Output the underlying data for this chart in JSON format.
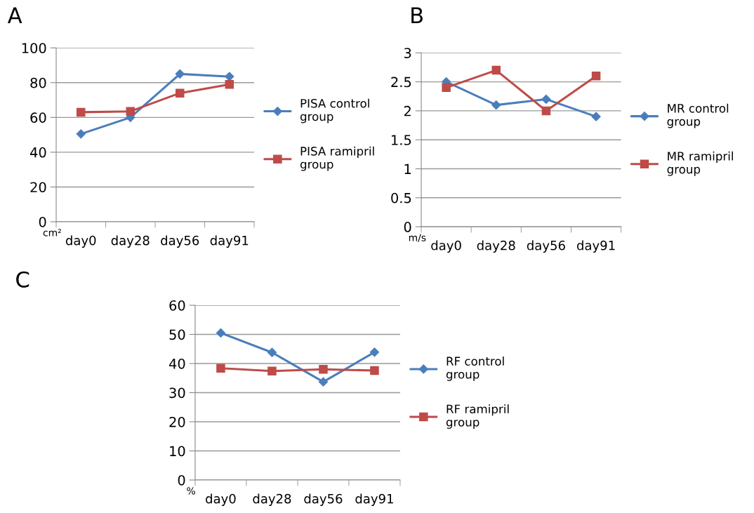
{
  "chart_data": [
    {
      "type": "line",
      "annotations": [
        "A"
      ],
      "ylabel": "cm²",
      "categories": [
        "day0",
        "day28",
        "day56",
        "day91"
      ],
      "ylim": [
        0,
        100
      ],
      "yticks": [
        0,
        20,
        40,
        60,
        80,
        100
      ],
      "grid": "y",
      "legend": "right",
      "series": [
        {
          "name": "PISA control group",
          "color": "#4a7ebb",
          "marker": "diamond",
          "values": [
            50.5,
            60,
            85,
            83.5
          ]
        },
        {
          "name": "PISA ramipril group",
          "color": "#be4b48",
          "marker": "square",
          "values": [
            63,
            63.5,
            74,
            79
          ]
        }
      ]
    },
    {
      "type": "line",
      "annotations": [
        "B"
      ],
      "ylabel": "m/s",
      "categories": [
        "day0",
        "day28",
        "day56",
        "day91"
      ],
      "ylim": [
        0,
        3
      ],
      "yticks": [
        0,
        0.5,
        1,
        1.5,
        2,
        2.5,
        3
      ],
      "grid": "y",
      "legend": "right",
      "series": [
        {
          "name": "MR control group",
          "color": "#4a7ebb",
          "marker": "diamond",
          "values": [
            2.5,
            2.1,
            2.2,
            1.9
          ]
        },
        {
          "name": "MR ramipril group",
          "color": "#be4b48",
          "marker": "square",
          "values": [
            2.4,
            2.7,
            2.0,
            2.6
          ]
        }
      ]
    },
    {
      "type": "line",
      "annotations": [
        "C"
      ],
      "ylabel": "%",
      "categories": [
        "day0",
        "day28",
        "day56",
        "day91"
      ],
      "ylim": [
        0,
        60
      ],
      "yticks": [
        0,
        10,
        20,
        30,
        40,
        50,
        60
      ],
      "grid": "y",
      "legend": "right",
      "series": [
        {
          "name": "RF control group",
          "color": "#4a7ebb",
          "marker": "diamond",
          "values": [
            50.5,
            43.8,
            33.7,
            43.9
          ]
        },
        {
          "name": "RF ramipril group",
          "color": "#be4b48",
          "marker": "square",
          "values": [
            38.4,
            37.4,
            38.0,
            37.6
          ]
        }
      ]
    }
  ]
}
